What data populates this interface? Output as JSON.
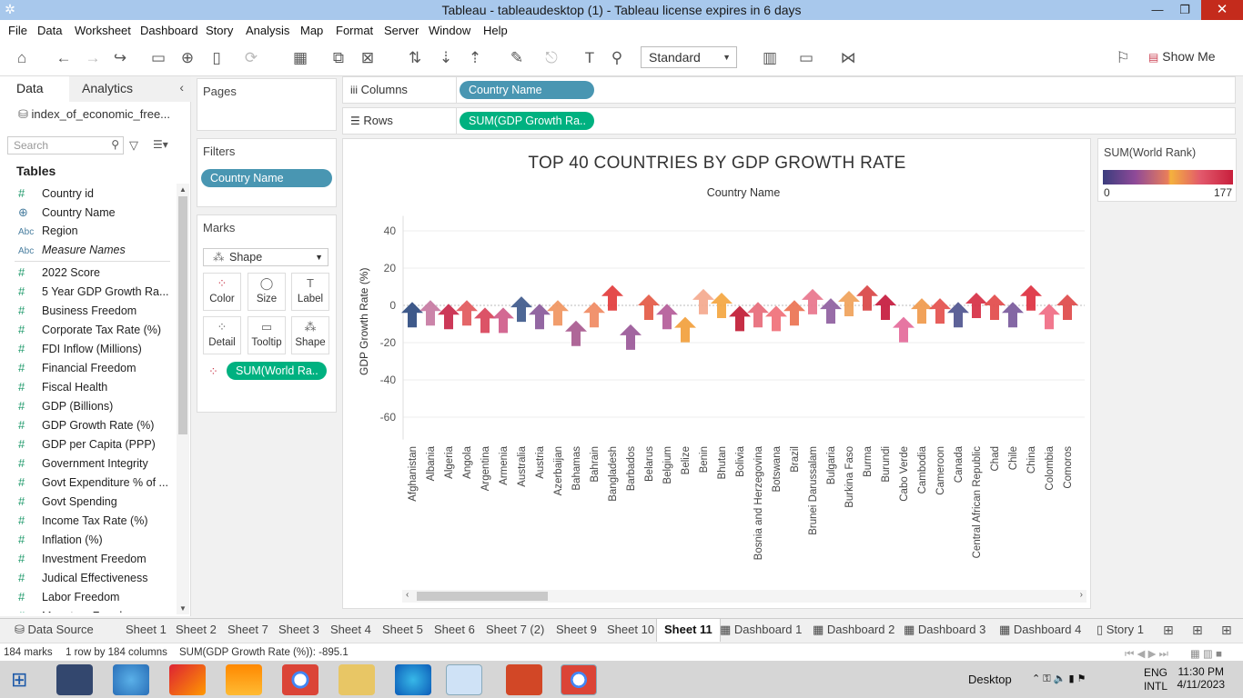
{
  "window": {
    "title": "Tableau - tableaudesktop (1) - Tableau license expires in 6 days"
  },
  "menu": [
    "File",
    "Data",
    "Worksheet",
    "Dashboard",
    "Story",
    "Analysis",
    "Map",
    "Format",
    "Server",
    "Window",
    "Help"
  ],
  "toolbar": {
    "fit_mode": "Standard",
    "show_me": "Show Me"
  },
  "left_pane": {
    "tabs": {
      "data": "Data",
      "analytics": "Analytics"
    },
    "datasource": "index_of_economic_free...",
    "search_placeholder": "Search",
    "tables_header": "Tables",
    "fields": [
      {
        "icon": "#",
        "label": "Country id"
      },
      {
        "icon": "globe",
        "label": "Country Name"
      },
      {
        "icon": "Abc",
        "label": "Region"
      },
      {
        "icon": "Abc",
        "label": "Measure Names",
        "italic": true
      },
      {
        "icon": "#",
        "label": "2022 Score"
      },
      {
        "icon": "#",
        "label": "5 Year GDP Growth Ra..."
      },
      {
        "icon": "#",
        "label": "Business Freedom"
      },
      {
        "icon": "#",
        "label": "Corporate Tax Rate (%)"
      },
      {
        "icon": "#",
        "label": "FDI Inflow (Millions)"
      },
      {
        "icon": "#",
        "label": "Financial Freedom"
      },
      {
        "icon": "#",
        "label": "Fiscal Health"
      },
      {
        "icon": "#",
        "label": "GDP (Billions)"
      },
      {
        "icon": "#",
        "label": "GDP Growth Rate (%)"
      },
      {
        "icon": "#",
        "label": "GDP per Capita (PPP)"
      },
      {
        "icon": "#",
        "label": "Government Integrity"
      },
      {
        "icon": "#",
        "label": "Govt Expenditure % of ..."
      },
      {
        "icon": "#",
        "label": "Govt Spending"
      },
      {
        "icon": "#",
        "label": "Income Tax Rate (%)"
      },
      {
        "icon": "#",
        "label": "Inflation (%)"
      },
      {
        "icon": "#",
        "label": "Investment Freedom"
      },
      {
        "icon": "#",
        "label": "Judical Effectiveness"
      },
      {
        "icon": "#",
        "label": "Labor Freedom"
      },
      {
        "icon": "#",
        "label": "Monetary Freedom"
      }
    ]
  },
  "pages": {
    "title": "Pages"
  },
  "filters": {
    "title": "Filters",
    "pill": "Country Name"
  },
  "marks": {
    "title": "Marks",
    "type": "Shape",
    "buttons": [
      "Color",
      "Size",
      "Label",
      "Detail",
      "Tooltip",
      "Shape"
    ],
    "pill": "SUM(World Ra.."
  },
  "shelves": {
    "columns_label": "Columns",
    "columns_pill": "Country Name",
    "rows_label": "Rows",
    "rows_pill": "SUM(GDP Growth Ra.."
  },
  "legend": {
    "title": "SUM(World Rank)",
    "min": "0",
    "max": "177"
  },
  "chart_data": {
    "type": "scatter",
    "title": "TOP 40 COUNTRIES BY GDP GROWTH RATE",
    "column_header": "Country Name",
    "ylabel": "GDP Growth Rate (%)",
    "ylim": [
      -70,
      50
    ],
    "yticks": [
      40,
      20,
      0,
      -20,
      -40,
      -60
    ],
    "grid": true,
    "mark_shape": "arrow-up",
    "categories": [
      "Afghanistan",
      "Albania",
      "Algeria",
      "Angola",
      "Argentina",
      "Armenia",
      "Australia",
      "Austria",
      "Azerbaijan",
      "Bahamas",
      "Bahrain",
      "Bangladesh",
      "Barbados",
      "Belarus",
      "Belgium",
      "Belize",
      "Benin",
      "Bhutan",
      "Bolivia",
      "Bosnia and Herzegovina",
      "Botswana",
      "Brazil",
      "Brunei Darussalam",
      "Bulgaria",
      "Burkina Faso",
      "Burma",
      "Burundi",
      "Cabo Verde",
      "Cambodia",
      "Cameroon",
      "Canada",
      "Central African Republic",
      "Chad",
      "Chile",
      "China",
      "Colombia",
      "Comoros"
    ],
    "values": [
      -5,
      -4,
      -6,
      -4,
      -8,
      -8,
      -2,
      -6,
      -4,
      -15,
      -5,
      4,
      -17,
      -1,
      -6,
      -13,
      2,
      0,
      -7,
      -5,
      -7,
      -4,
      2,
      -3,
      1,
      4,
      -1,
      -13,
      -3,
      -3,
      -5,
      0,
      -1,
      -5,
      4,
      -6,
      -1
    ],
    "colors": [
      "#2e4b80",
      "#c77aa2",
      "#c8284a",
      "#e2595c",
      "#d9445a",
      "#cf5c8a",
      "#3f5a8c",
      "#8a5a9a",
      "#f09560",
      "#a85a8f",
      "#f08a62",
      "#e23c3c",
      "#9a5898",
      "#e45a45",
      "#b45c99",
      "#f2a03c",
      "#f4a98e",
      "#f4a640",
      "#c11c35",
      "#e76b7a",
      "#f07078",
      "#ec7353",
      "#e8758c",
      "#8f5fa0",
      "#f0a25a",
      "#d94545",
      "#c51a3d",
      "#e46a9a",
      "#f09a4c",
      "#e4504d",
      "#4f558f",
      "#d62f44",
      "#e24a4a",
      "#7a5a9c",
      "#dd3040",
      "#f06c84",
      "#de4a4a"
    ]
  },
  "sheet_tabs": [
    "Data Source",
    "Sheet 1",
    "Sheet 2",
    "Sheet 7",
    "Sheet 3",
    "Sheet 4",
    "Sheet 5",
    "Sheet 6",
    "Sheet 7 (2)",
    "Sheet 9",
    "Sheet 10",
    "Sheet 11",
    "Dashboard 1",
    "Dashboard 2",
    "Dashboard 3",
    "Dashboard 4",
    "Story 1"
  ],
  "active_sheet": "Sheet 11",
  "status": {
    "marks": "184 marks",
    "dims": "1 row by 184 columns",
    "sum": "SUM(GDP Growth Rate (%)): -895.1"
  },
  "taskbar": {
    "desktop": "Desktop",
    "lang1": "ENG",
    "lang2": "INTL",
    "time": "11:30 PM",
    "date": "4/11/2023"
  }
}
